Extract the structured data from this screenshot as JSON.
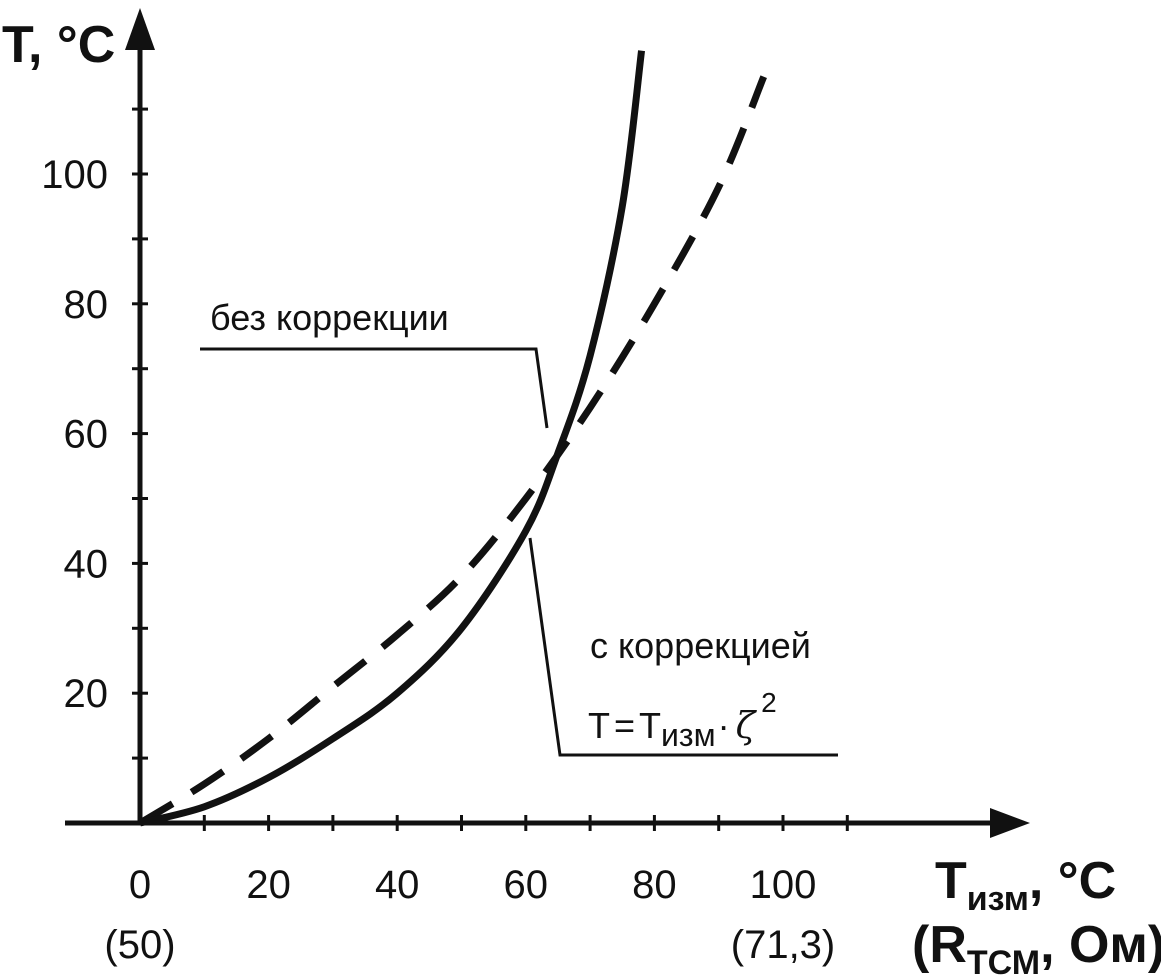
{
  "chart_data": {
    "type": "line",
    "xlabel": {
      "main": "T",
      "sub": "изм",
      "rest": ", °C"
    },
    "xlabel2": {
      "open": "(R",
      "sub": "ТСМ",
      "rest": ", Ом)"
    },
    "ylabel": "T, °C",
    "xlim": [
      0,
      110
    ],
    "ylim": [
      0,
      120
    ],
    "x_ticks": [
      0,
      20,
      40,
      60,
      80,
      100
    ],
    "y_ticks": [
      20,
      40,
      60,
      80,
      100
    ],
    "x_tick_labels_secondary": [
      {
        "x": 0,
        "label": "(50)"
      },
      {
        "x": 100,
        "label": "(71,3)"
      }
    ],
    "series": [
      {
        "style": "dashed",
        "x": [
          0,
          10,
          20,
          30,
          40,
          50,
          60,
          70,
          80,
          90,
          97
        ],
        "y": [
          0,
          6,
          13,
          21,
          29,
          38,
          50,
          64,
          80,
          98,
          115
        ]
      },
      {
        "style": "solid",
        "x": [
          0,
          10,
          20,
          30,
          40,
          50,
          60,
          65,
          70,
          75,
          78
        ],
        "y": [
          0,
          2.5,
          7,
          13,
          20,
          30,
          45,
          57,
          72,
          95,
          119
        ]
      }
    ],
    "annotations": [
      {
        "id": "no-correction",
        "text": "без коррекции"
      },
      {
        "id": "with-correction",
        "text": "с коррекцией"
      },
      {
        "id": "formula",
        "lhs": "T",
        "eq": "=",
        "rhs": "T",
        "rhs_sub": "изм",
        "dot": "·",
        "symbol": "ζ",
        "exp": "2"
      }
    ]
  }
}
